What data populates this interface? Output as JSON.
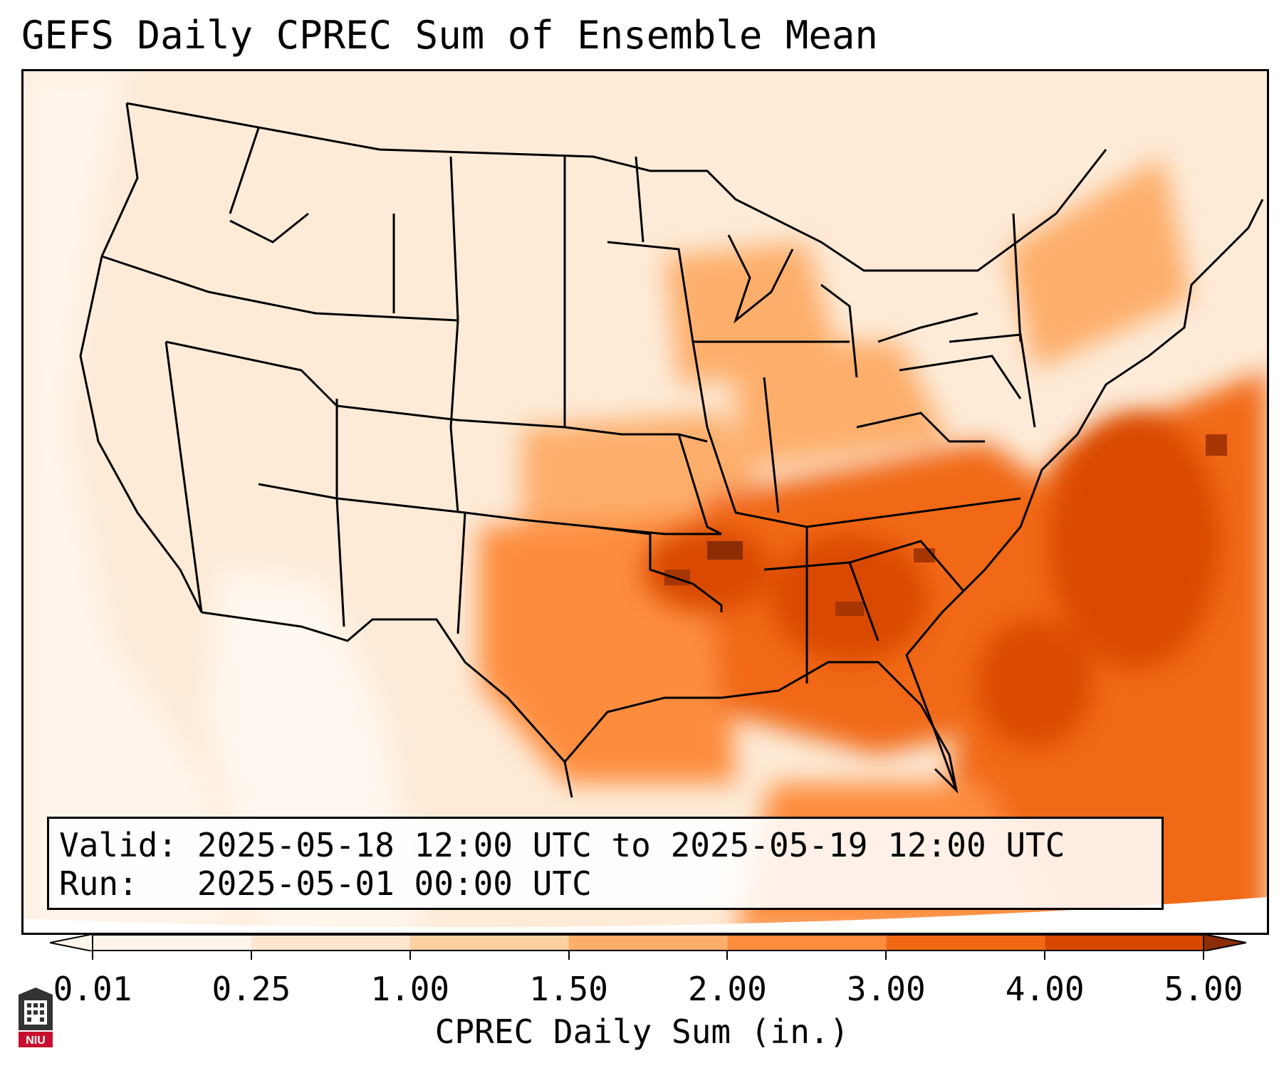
{
  "title": "GEFS Daily CPREC Sum of Ensemble Mean",
  "valid": {
    "label": "Valid:",
    "from": "2025-05-18 12:00 UTC",
    "sep": "to",
    "to": "2025-05-19 12:00 UTC"
  },
  "run": {
    "label": "Run:",
    "time": "2025-05-01 00:00 UTC"
  },
  "colorbar": {
    "label": "CPREC Daily Sum (in.)",
    "ticks": [
      "0.01",
      "0.25",
      "1.00",
      "1.50",
      "2.00",
      "3.00",
      "4.00",
      "5.00"
    ],
    "colors": [
      "#fff5eb",
      "#fee6ce",
      "#fdd0a2",
      "#fdae6b",
      "#fd8d3c",
      "#f16913",
      "#d94801",
      "#8c2d04"
    ]
  },
  "logo": {
    "text": "NIU",
    "icon": "niu-logo-icon"
  }
}
